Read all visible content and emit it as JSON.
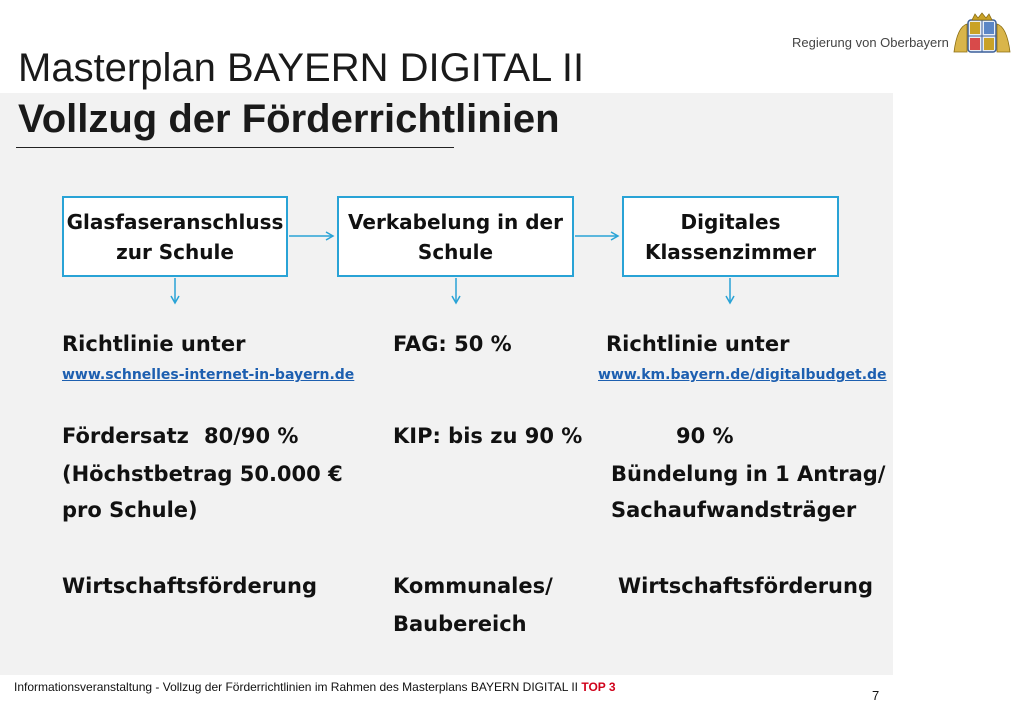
{
  "header": {
    "title_line1": "Masterplan BAYERN DIGITAL II",
    "title_line2": "Vollzug der Förderrichtlinien",
    "org_name": "Regierung von Oberbayern"
  },
  "flow": {
    "box1": "Glasfaseranschluss zur Schule",
    "box2": "Verkabelung in der Schule",
    "box3": "Digitales Klassenzimmer"
  },
  "colors": {
    "box_border": "#29a3d6",
    "link": "#1d5fb0",
    "panel_bg": "#f2f2f2",
    "footer_accent": "#d0021b"
  },
  "col1": {
    "line1": "Richtlinie unter",
    "link": "www.schnelles-internet-in-bayern.de",
    "foerdersatz_label": "Fördersatz",
    "foerdersatz_value": "80/90 %",
    "hoechst1": "(Höchstbetrag 50.000 €",
    "hoechst2": "pro Schule)",
    "bereich": "Wirtschaftsförderung"
  },
  "col2": {
    "line1": "FAG: 50 %",
    "kip": "KIP: bis zu 90 %",
    "bereich1": "Kommunales/",
    "bereich2": "Baubereich"
  },
  "col3": {
    "line1": "Richtlinie unter",
    "link": "www.km.bayern.de/digitalbudget.de",
    "satz": "90 %",
    "buendel1": "Bündelung in 1 Antrag/",
    "buendel2": "Sachaufwandsträger",
    "bereich": "Wirtschaftsförderung"
  },
  "footer": {
    "text": "Informationsveranstaltung - Vollzug der Förderrichtlinien im Rahmen des Masterplans BAYERN DIGITAL II",
    "top_label": "TOP 3",
    "page": "7"
  }
}
